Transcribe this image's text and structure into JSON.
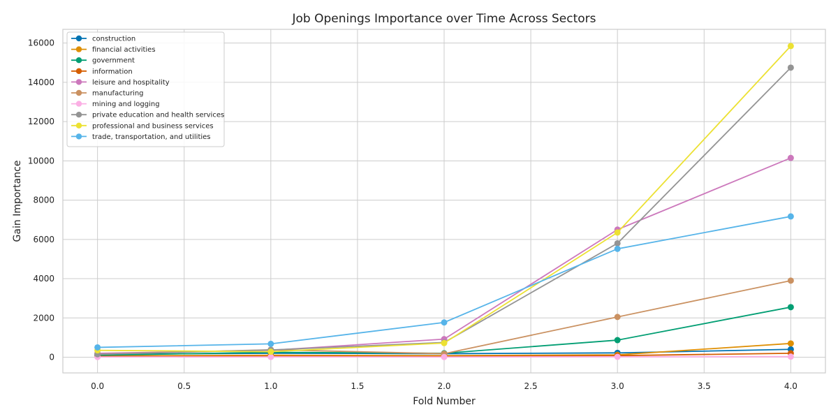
{
  "chart_data": {
    "type": "line",
    "title": "Job Openings Importance over Time Across Sectors",
    "xlabel": "Fold Number",
    "ylabel": "Gain Importance",
    "x": [
      0.0,
      1.0,
      2.0,
      3.0,
      4.0
    ],
    "xlim": [
      -0.2,
      4.2
    ],
    "ylim": [
      -800,
      16700
    ],
    "xticks": [
      "0.0",
      "0.5",
      "1.0",
      "1.5",
      "2.0",
      "2.5",
      "3.0",
      "3.5",
      "4.0"
    ],
    "yticks": [
      "0",
      "2000",
      "4000",
      "6000",
      "8000",
      "10000",
      "12000",
      "14000",
      "16000"
    ],
    "grid": true,
    "legend_position": "top-left",
    "series": [
      {
        "name": "construction",
        "color": "#0173b2",
        "values": [
          150,
          200,
          180,
          220,
          400
        ]
      },
      {
        "name": "financial activities",
        "color": "#de8f05",
        "values": [
          60,
          100,
          80,
          120,
          700
        ]
      },
      {
        "name": "government",
        "color": "#029e73",
        "values": [
          100,
          250,
          200,
          870,
          2550
        ]
      },
      {
        "name": "information",
        "color": "#d55e00",
        "values": [
          40,
          50,
          40,
          80,
          200
        ]
      },
      {
        "name": "leisure and hospitality",
        "color": "#cc78bc",
        "values": [
          200,
          350,
          920,
          6500,
          10150
        ]
      },
      {
        "name": "manufacturing",
        "color": "#ca9161",
        "values": [
          150,
          380,
          180,
          2050,
          3900
        ]
      },
      {
        "name": "mining and logging",
        "color": "#fbafe4",
        "values": [
          10,
          15,
          10,
          20,
          30
        ]
      },
      {
        "name": "private education and health services",
        "color": "#949494",
        "values": [
          150,
          370,
          750,
          5800,
          14750
        ]
      },
      {
        "name": "professional and business services",
        "color": "#ece133",
        "values": [
          350,
          280,
          720,
          6350,
          15850
        ]
      },
      {
        "name": "trade, transportation, and utilities",
        "color": "#56b4e9",
        "values": [
          500,
          680,
          1770,
          5520,
          7170
        ]
      }
    ]
  }
}
